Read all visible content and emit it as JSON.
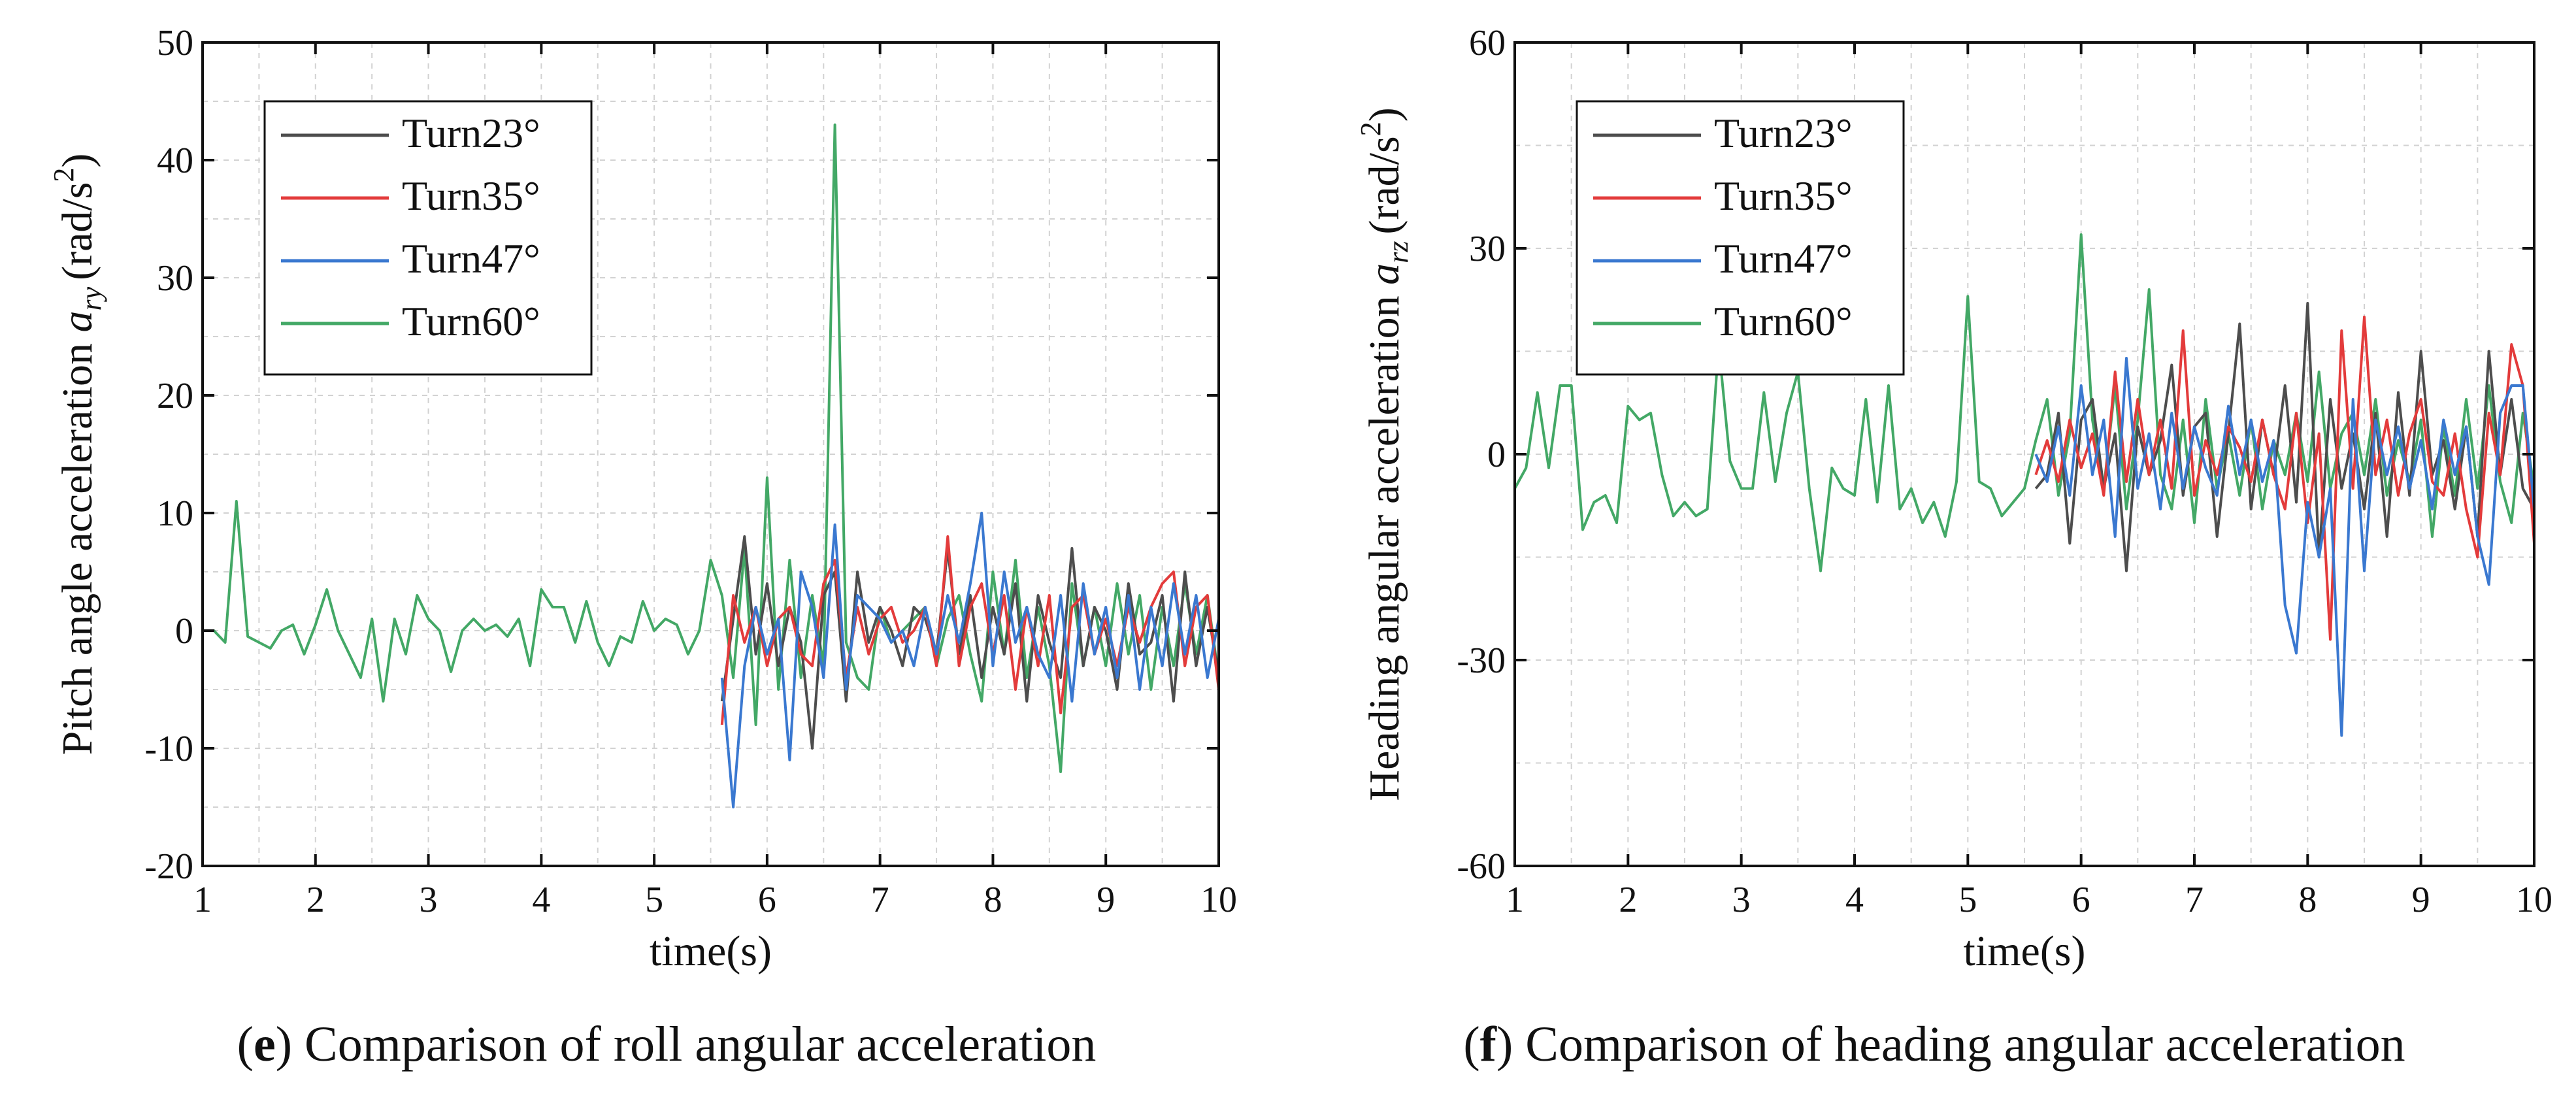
{
  "colors": {
    "Turn23°": "#4d4d4d",
    "Turn35°": "#e33b3b",
    "Turn47°": "#3a78d0",
    "Turn60°": "#43a866",
    "grid": "#d2d2d2",
    "axis": "#111111"
  },
  "chart_data": [
    {
      "panel_letter": "e",
      "caption": "Comparison of roll angular acceleration",
      "type": "line",
      "title": "",
      "xlabel": "time(s)",
      "ylabel_text": "Pitch angle acceleration",
      "ylabel_symbol": "a",
      "ylabel_subscript": "ry",
      "ylabel_unit_base": "(rad/s",
      "ylabel_unit_exp": "2",
      "ylabel_unit_close": ")",
      "xlim": [
        1,
        10
      ],
      "ylim": [
        -20,
        50
      ],
      "xticks": [
        "1",
        "2",
        "3",
        "4",
        "5",
        "6",
        "7",
        "8",
        "9",
        "10"
      ],
      "yticks": [
        "-20",
        "-10",
        "0",
        "10",
        "20",
        "30",
        "40",
        "50"
      ],
      "grid": true,
      "legend_position": "top-left",
      "series": [
        {
          "name": "Turn23°",
          "x": [
            5.6,
            5.7,
            5.8,
            5.9,
            6.0,
            6.1,
            6.2,
            6.3,
            6.4,
            6.5,
            6.6,
            6.7,
            6.8,
            6.9,
            7.0,
            7.1,
            7.2,
            7.3,
            7.4,
            7.5,
            7.6,
            7.7,
            7.8,
            7.9,
            8.0,
            8.1,
            8.2,
            8.3,
            8.4,
            8.5,
            8.6,
            8.7,
            8.8,
            8.9,
            9.0,
            9.1,
            9.2,
            9.3,
            9.4,
            9.5,
            9.6,
            9.7,
            9.8,
            9.9,
            10.0
          ],
          "y": [
            -6,
            1,
            8,
            -2,
            4,
            -3,
            2,
            -1,
            -10,
            3,
            5,
            -6,
            5,
            -1,
            2,
            0,
            -3,
            2,
            1,
            -2,
            7,
            -2,
            3,
            -4,
            2,
            -2,
            4,
            -6,
            3,
            -1,
            -4,
            7,
            -3,
            2,
            0,
            -5,
            4,
            -2,
            -1,
            3,
            -6,
            5,
            -3,
            2,
            -4
          ]
        },
        {
          "name": "Turn35°",
          "x": [
            5.6,
            5.7,
            5.8,
            5.9,
            6.0,
            6.1,
            6.2,
            6.3,
            6.4,
            6.5,
            6.6,
            6.7,
            6.8,
            6.9,
            7.0,
            7.1,
            7.2,
            7.3,
            7.4,
            7.5,
            7.6,
            7.7,
            7.8,
            7.9,
            8.0,
            8.1,
            8.2,
            8.3,
            8.4,
            8.5,
            8.6,
            8.7,
            8.8,
            8.9,
            9.0,
            9.1,
            9.2,
            9.3,
            9.4,
            9.5,
            9.6,
            9.7,
            9.8,
            9.9,
            10.0
          ],
          "y": [
            -8,
            3,
            -1,
            2,
            -3,
            1,
            2,
            -2,
            -3,
            4,
            6,
            -4,
            2,
            -2,
            1,
            2,
            -1,
            0,
            2,
            -3,
            8,
            -3,
            2,
            4,
            -2,
            3,
            -5,
            2,
            -3,
            3,
            -7,
            2,
            3,
            -2,
            1,
            -3,
            2,
            -1,
            2,
            4,
            5,
            -3,
            2,
            3,
            -5
          ]
        },
        {
          "name": "Turn47°",
          "x": [
            5.6,
            5.7,
            5.8,
            5.9,
            6.0,
            6.1,
            6.2,
            6.3,
            6.4,
            6.5,
            6.6,
            6.7,
            6.8,
            6.9,
            7.0,
            7.1,
            7.2,
            7.3,
            7.4,
            7.5,
            7.6,
            7.7,
            7.8,
            7.9,
            8.0,
            8.1,
            8.2,
            8.3,
            8.4,
            8.5,
            8.6,
            8.7,
            8.8,
            8.9,
            9.0,
            9.1,
            9.2,
            9.3,
            9.4,
            9.5,
            9.6,
            9.7,
            9.8,
            9.9,
            10.0
          ],
          "y": [
            -4,
            -15,
            -3,
            2,
            -2,
            1,
            -11,
            5,
            2,
            -4,
            9,
            -5,
            3,
            2,
            1,
            -1,
            0,
            -3,
            2,
            -2,
            3,
            -1,
            4,
            10,
            -3,
            5,
            -1,
            2,
            -2,
            -4,
            3,
            -6,
            4,
            -2,
            2,
            -4,
            3,
            -5,
            2,
            -3,
            4,
            -2,
            3,
            -4,
            1
          ]
        },
        {
          "name": "Turn60°",
          "x": [
            1.0,
            1.1,
            1.2,
            1.3,
            1.4,
            1.5,
            1.6,
            1.7,
            1.8,
            1.9,
            2.0,
            2.1,
            2.2,
            2.3,
            2.4,
            2.5,
            2.6,
            2.7,
            2.8,
            2.9,
            3.0,
            3.1,
            3.2,
            3.3,
            3.4,
            3.5,
            3.6,
            3.7,
            3.8,
            3.9,
            4.0,
            4.1,
            4.2,
            4.3,
            4.4,
            4.5,
            4.6,
            4.7,
            4.8,
            4.9,
            5.0,
            5.1,
            5.2,
            5.3,
            5.4,
            5.5,
            5.6,
            5.7,
            5.8,
            5.9,
            6.0,
            6.1,
            6.2,
            6.3,
            6.4,
            6.5,
            6.6,
            6.7,
            6.8,
            6.9,
            7.0,
            7.1,
            7.2,
            7.3,
            7.4,
            7.5,
            7.6,
            7.7,
            7.8,
            7.9,
            8.0,
            8.1,
            8.2,
            8.3,
            8.4,
            8.5,
            8.6,
            8.7,
            8.8,
            8.9,
            9.0,
            9.1,
            9.2,
            9.3,
            9.4,
            9.5,
            9.6,
            9.7,
            9.8,
            9.9,
            10.0
          ],
          "y": [
            0,
            0,
            -1,
            11,
            -0.5,
            -1,
            -1.5,
            0,
            0.5,
            -2,
            0.5,
            3.5,
            0,
            -2,
            -4,
            1,
            -6,
            1,
            -2,
            3,
            1,
            0,
            -3.5,
            0,
            1,
            0,
            0.5,
            -0.5,
            1,
            -3,
            3.5,
            2,
            2,
            -1,
            2.5,
            -1,
            -3,
            -0.5,
            -1,
            2.5,
            0,
            1,
            0.5,
            -2,
            0,
            6,
            3,
            -4,
            7,
            -8,
            13,
            -5,
            6,
            -4,
            3,
            -3,
            43,
            -1,
            -4,
            -5,
            2,
            -1,
            0,
            1,
            2,
            -3,
            1,
            3,
            -2,
            -6,
            5,
            -2,
            6,
            -4,
            2,
            -3,
            -12,
            4,
            -3,
            2,
            -3,
            4,
            -2,
            3,
            -5,
            2,
            -3,
            4,
            -2,
            3,
            -4
          ]
        }
      ]
    },
    {
      "panel_letter": "f",
      "caption": "Comparison of heading angular acceleration",
      "type": "line",
      "title": "",
      "xlabel": "time(s)",
      "ylabel_text": "Heading angular acceleration",
      "ylabel_symbol": "a",
      "ylabel_subscript": "rz",
      "ylabel_unit_base": "(rad/s",
      "ylabel_unit_exp": "2",
      "ylabel_unit_close": ")",
      "xlim": [
        1,
        10
      ],
      "ylim": [
        -60,
        60
      ],
      "xticks": [
        "1",
        "2",
        "3",
        "4",
        "5",
        "6",
        "7",
        "8",
        "9",
        "10"
      ],
      "yticks": [
        "-60",
        "-30",
        "0",
        "30",
        "60"
      ],
      "grid": true,
      "legend_position": "top-left",
      "series": [
        {
          "name": "Turn23°",
          "x": [
            5.6,
            5.7,
            5.8,
            5.9,
            6.0,
            6.1,
            6.2,
            6.3,
            6.4,
            6.5,
            6.6,
            6.7,
            6.8,
            6.9,
            7.0,
            7.1,
            7.2,
            7.3,
            7.4,
            7.5,
            7.6,
            7.7,
            7.8,
            7.9,
            8.0,
            8.1,
            8.2,
            8.3,
            8.4,
            8.5,
            8.6,
            8.7,
            8.8,
            8.9,
            9.0,
            9.1,
            9.2,
            9.3,
            9.4,
            9.5,
            9.6,
            9.7,
            9.8,
            9.9,
            10.0
          ],
          "y": [
            -5,
            -3,
            6,
            -13,
            5,
            8,
            -5,
            3,
            -17,
            4,
            -3,
            2,
            13,
            -6,
            4,
            6,
            -12,
            3,
            19,
            -8,
            5,
            -3,
            10,
            -7,
            22,
            -15,
            8,
            -5,
            3,
            -8,
            6,
            -12,
            9,
            -6,
            15,
            -3,
            2,
            -8,
            4,
            -12,
            15,
            -3,
            8,
            -5,
            -8
          ]
        },
        {
          "name": "Turn35°",
          "x": [
            5.6,
            5.7,
            5.8,
            5.9,
            6.0,
            6.1,
            6.2,
            6.3,
            6.4,
            6.5,
            6.6,
            6.7,
            6.8,
            6.9,
            7.0,
            7.1,
            7.2,
            7.3,
            7.4,
            7.5,
            7.6,
            7.7,
            7.8,
            7.9,
            8.0,
            8.1,
            8.2,
            8.3,
            8.4,
            8.5,
            8.6,
            8.7,
            8.8,
            8.9,
            9.0,
            9.1,
            9.2,
            9.3,
            9.4,
            9.5,
            9.6,
            9.7,
            9.8,
            9.9,
            10.0
          ],
          "y": [
            -3,
            2,
            -4,
            5,
            -2,
            3,
            -6,
            12,
            -4,
            8,
            -3,
            5,
            -5,
            18,
            -6,
            2,
            -3,
            4,
            1,
            -4,
            5,
            -3,
            -8,
            6,
            -10,
            3,
            -27,
            18,
            -5,
            20,
            -3,
            5,
            -6,
            3,
            8,
            -4,
            -6,
            3,
            -8,
            -15,
            6,
            -3,
            16,
            10,
            -13
          ]
        },
        {
          "name": "Turn47°",
          "x": [
            5.6,
            5.7,
            5.8,
            5.9,
            6.0,
            6.1,
            6.2,
            6.3,
            6.4,
            6.5,
            6.6,
            6.7,
            6.8,
            6.9,
            7.0,
            7.1,
            7.2,
            7.3,
            7.4,
            7.5,
            7.6,
            7.7,
            7.8,
            7.9,
            8.0,
            8.1,
            8.2,
            8.3,
            8.4,
            8.5,
            8.6,
            8.7,
            8.8,
            8.9,
            9.0,
            9.1,
            9.2,
            9.3,
            9.4,
            9.5,
            9.6,
            9.7,
            9.8,
            9.9,
            10.0
          ],
          "y": [
            0,
            -4,
            4,
            -6,
            10,
            -3,
            5,
            -12,
            14,
            -5,
            3,
            -8,
            6,
            -5,
            4,
            -2,
            -6,
            7,
            -3,
            5,
            -4,
            2,
            -22,
            -29,
            -7,
            -15,
            -5,
            -41,
            8,
            -17,
            5,
            -3,
            4,
            -5,
            2,
            -8,
            5,
            -3,
            4,
            -12,
            -19,
            6,
            10,
            10,
            -8
          ]
        },
        {
          "name": "Turn60°",
          "x": [
            1.0,
            1.1,
            1.2,
            1.3,
            1.4,
            1.5,
            1.6,
            1.7,
            1.8,
            1.9,
            2.0,
            2.1,
            2.2,
            2.3,
            2.4,
            2.5,
            2.6,
            2.7,
            2.8,
            2.9,
            3.0,
            3.1,
            3.2,
            3.3,
            3.4,
            3.5,
            3.6,
            3.7,
            3.8,
            3.9,
            4.0,
            4.1,
            4.2,
            4.3,
            4.4,
            4.5,
            4.6,
            4.7,
            4.8,
            4.9,
            5.0,
            5.1,
            5.2,
            5.3,
            5.4,
            5.5,
            5.6,
            5.7,
            5.8,
            5.9,
            6.0,
            6.1,
            6.2,
            6.3,
            6.4,
            6.5,
            6.6,
            6.7,
            6.8,
            6.9,
            7.0,
            7.1,
            7.2,
            7.3,
            7.4,
            7.5,
            7.6,
            7.7,
            7.8,
            7.9,
            8.0,
            8.1,
            8.2,
            8.3,
            8.4,
            8.5,
            8.6,
            8.7,
            8.8,
            8.9,
            9.0,
            9.1,
            9.2,
            9.3,
            9.4,
            9.5,
            9.6,
            9.7,
            9.8,
            9.9,
            10.0
          ],
          "y": [
            -5,
            -2,
            9,
            -2,
            10,
            10,
            -11,
            -7,
            -6,
            -10,
            7,
            5,
            6,
            -3,
            -9,
            -7,
            -9,
            -8,
            16,
            -1,
            -5,
            -5,
            9,
            -4,
            6,
            12,
            -5,
            -17,
            -2,
            -5,
            -6,
            8,
            -7,
            10,
            -8,
            -5,
            -10,
            -7,
            -12,
            -4,
            23,
            -4,
            -5,
            -9,
            -7,
            -5,
            2,
            8,
            -6,
            3,
            32,
            5,
            -5,
            10,
            -8,
            5,
            24,
            -3,
            -8,
            5,
            -10,
            8,
            -5,
            3,
            -6,
            5,
            -8,
            2,
            -3,
            6,
            -4,
            12,
            -5,
            3,
            6,
            -3,
            8,
            -6,
            2,
            -4,
            5,
            -12,
            4,
            -6,
            8,
            -5,
            10,
            -4,
            -10,
            6,
            -5
          ]
        }
      ]
    }
  ]
}
